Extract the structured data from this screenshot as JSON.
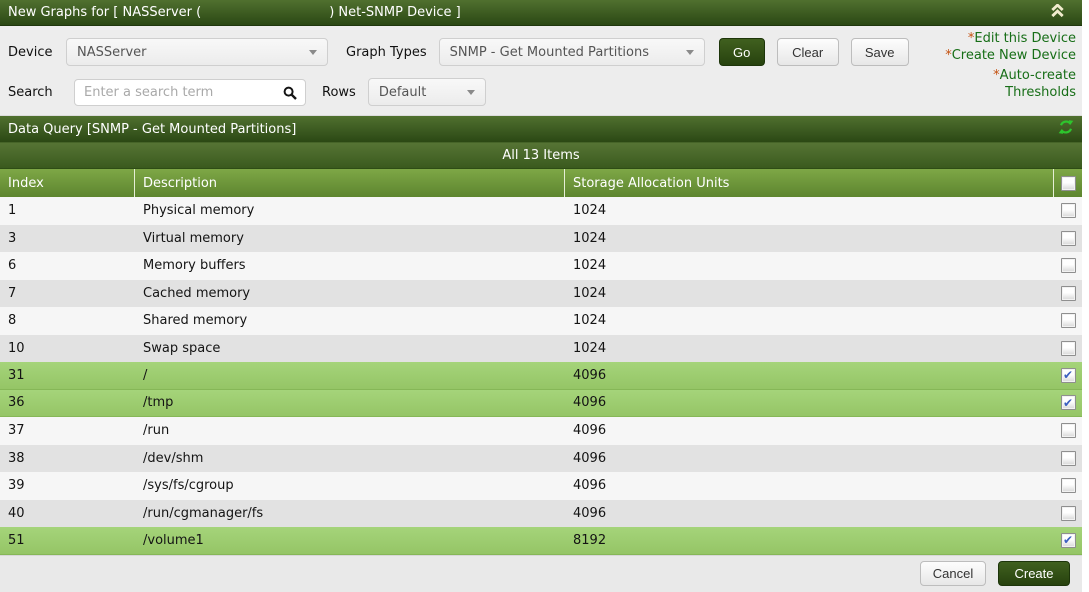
{
  "title_bar": {
    "text_prefix": "New Graphs for [ NASServer (",
    "text_suffix": ") Net-SNMP Device ]"
  },
  "toolbar": {
    "device_label": "Device",
    "device_value": "NASServer",
    "graph_types_label": "Graph Types",
    "graph_types_value": "SNMP - Get Mounted Partitions",
    "go_label": "Go",
    "clear_label": "Clear",
    "save_label": "Save",
    "search_label": "Search",
    "search_placeholder": "Enter a search term",
    "search_value": "",
    "rows_label": "Rows",
    "rows_value": "Default"
  },
  "links": [
    {
      "star": "*",
      "label": "Edit this Device"
    },
    {
      "star": "*",
      "label": "Create New Device"
    },
    {
      "star": "*",
      "label": "Auto-create"
    },
    {
      "star": "",
      "label": "Thresholds"
    }
  ],
  "data_query": {
    "title": "Data Query [SNMP - Get Mounted Partitions]"
  },
  "items_bar": {
    "text": "All 13 Items"
  },
  "table": {
    "columns": [
      "Index",
      "Description",
      "Storage Allocation Units"
    ],
    "rows": [
      {
        "index": "1",
        "description": "Physical memory",
        "units": "1024",
        "selected": false,
        "checked": false
      },
      {
        "index": "3",
        "description": "Virtual memory",
        "units": "1024",
        "selected": false,
        "checked": false
      },
      {
        "index": "6",
        "description": "Memory buffers",
        "units": "1024",
        "selected": false,
        "checked": false
      },
      {
        "index": "7",
        "description": "Cached memory",
        "units": "1024",
        "selected": false,
        "checked": false
      },
      {
        "index": "8",
        "description": "Shared memory",
        "units": "1024",
        "selected": false,
        "checked": false
      },
      {
        "index": "10",
        "description": "Swap space",
        "units": "1024",
        "selected": false,
        "checked": false
      },
      {
        "index": "31",
        "description": "/",
        "units": "4096",
        "selected": true,
        "checked": true
      },
      {
        "index": "36",
        "description": "/tmp",
        "units": "4096",
        "selected": true,
        "checked": true
      },
      {
        "index": "37",
        "description": "/run",
        "units": "4096",
        "selected": false,
        "checked": false
      },
      {
        "index": "38",
        "description": "/dev/shm",
        "units": "4096",
        "selected": false,
        "checked": false
      },
      {
        "index": "39",
        "description": "/sys/fs/cgroup",
        "units": "4096",
        "selected": false,
        "checked": false
      },
      {
        "index": "40",
        "description": "/run/cgmanager/fs",
        "units": "4096",
        "selected": false,
        "checked": false
      },
      {
        "index": "51",
        "description": "/volume1",
        "units": "8192",
        "selected": true,
        "checked": true
      }
    ],
    "header_checkbox_checked": false
  },
  "footer": {
    "cancel_label": "Cancel",
    "create_label": "Create"
  },
  "icons": {
    "collapse": "double-chevron-up-icon",
    "refresh": "refresh-icon",
    "search": "search-icon",
    "dropdown": "chevron-down-icon"
  },
  "colors": {
    "title_bar_green_top": "#50702f",
    "title_bar_green_bottom": "#2b4814",
    "table_header_green_top": "#7ea746",
    "table_header_green_bottom": "#5d852f",
    "selected_row_green": "#9ccb6e",
    "link_green": "#176e17",
    "link_star_orange": "#c4500e",
    "action_button_green": "#31511a",
    "refresh_icon_green": "#2dc52d",
    "checkmark_blue": "#3b5fc0"
  }
}
